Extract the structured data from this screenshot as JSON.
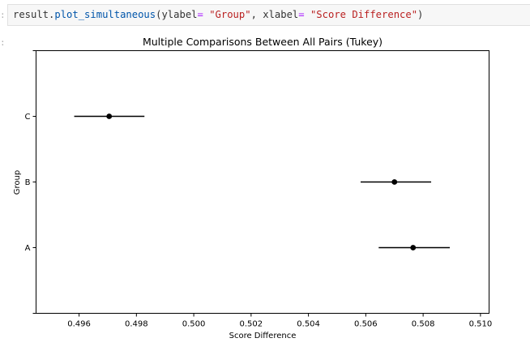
{
  "cell": {
    "gutter_top": ":",
    "gutter_bottom": ":",
    "code": {
      "obj": "result",
      "dot": ".",
      "method": "plot_simultaneous",
      "open": "(",
      "arg1": "ylabel",
      "eq1": "=",
      "sp1": " ",
      "val1": "\"Group\"",
      "comma": ", ",
      "arg2": "xlabel",
      "eq2": "=",
      "sp2": " ",
      "val2": "\"Score Difference\"",
      "close": ")"
    }
  },
  "chart_data": {
    "type": "scatter",
    "title": "Multiple Comparisons Between All Pairs (Tukey)",
    "xlabel": "Score Difference",
    "ylabel": "Group",
    "xlim": [
      0.4945,
      0.5103
    ],
    "x_ticks": [
      "0.496",
      "0.498",
      "0.500",
      "0.502",
      "0.504",
      "0.506",
      "0.508",
      "0.510"
    ],
    "x_tick_values": [
      0.496,
      0.498,
      0.5,
      0.502,
      0.504,
      0.506,
      0.508,
      0.51
    ],
    "categories": [
      "C",
      "B",
      "A"
    ],
    "means": [
      0.49705,
      0.507,
      0.50765
    ],
    "ci_lower": [
      0.49583,
      0.50582,
      0.50645
    ],
    "ci_upper": [
      0.49828,
      0.50828,
      0.50893
    ],
    "grid": false,
    "marker_color": "#000000",
    "line_color": "#000000"
  }
}
